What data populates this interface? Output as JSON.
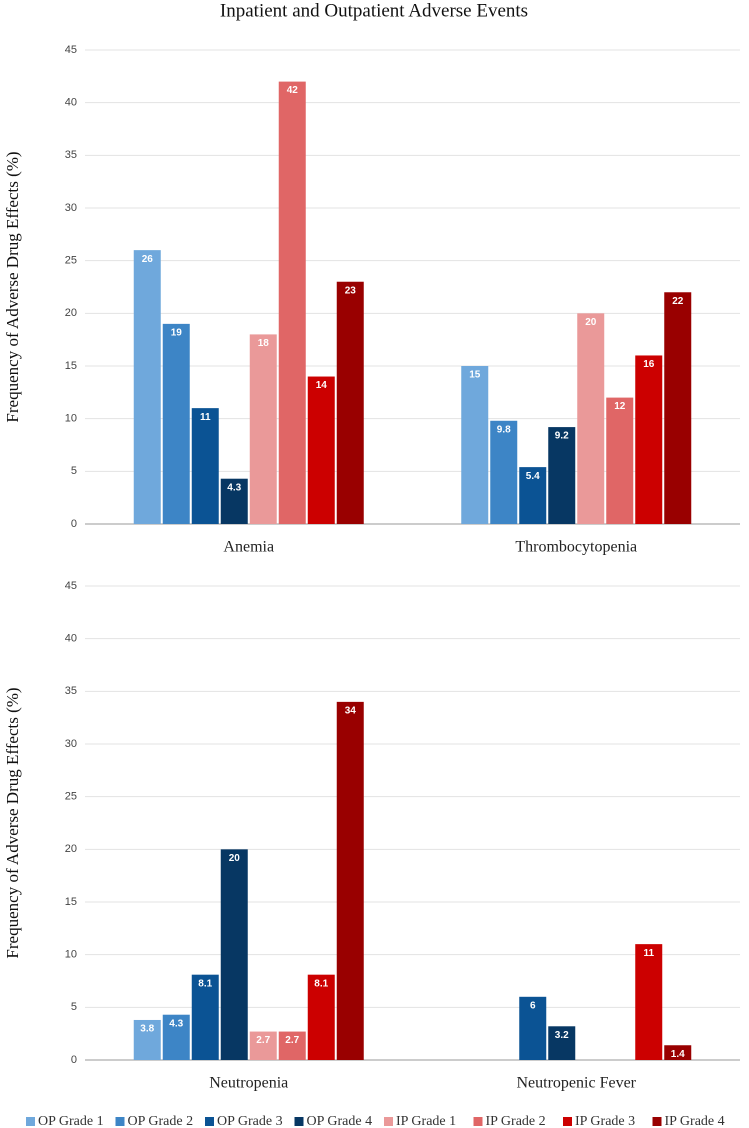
{
  "chart_data": [
    {
      "type": "bar",
      "title": "Inpatient and Outpatient Adverse Events",
      "ylabel": "Frequency of Adverse Drug Effects (%)",
      "categories": [
        "Anemia",
        "Thrombocytopenia"
      ],
      "ylim": [
        0,
        45
      ],
      "yticks": [
        0,
        5,
        10,
        15,
        20,
        25,
        30,
        35,
        40,
        45
      ],
      "grid": true,
      "series": [
        {
          "name": "OP Grade 1",
          "color": "#6fa8dc",
          "values": [
            26,
            15
          ]
        },
        {
          "name": "OP Grade 2",
          "color": "#3d85c6",
          "values": [
            19,
            9.8
          ]
        },
        {
          "name": "OP Grade 3",
          "color": "#0b5394",
          "values": [
            11,
            5.4
          ]
        },
        {
          "name": "OP Grade 4",
          "color": "#073763",
          "values": [
            4.3,
            9.2
          ]
        },
        {
          "name": "IP Grade 1",
          "color": "#ea9999",
          "values": [
            18,
            20
          ]
        },
        {
          "name": "IP Grade 2",
          "color": "#e06666",
          "values": [
            42,
            12
          ]
        },
        {
          "name": "IP Grade 3",
          "color": "#cc0000",
          "values": [
            14,
            16
          ]
        },
        {
          "name": "IP Grade 4",
          "color": "#990000",
          "values": [
            23,
            22
          ]
        }
      ]
    },
    {
      "type": "bar",
      "ylabel": "Frequency of Adverse Drug Effects (%)",
      "categories": [
        "Neutropenia",
        "Neutropenic Fever"
      ],
      "ylim": [
        0,
        45
      ],
      "yticks": [
        0,
        5,
        10,
        15,
        20,
        25,
        30,
        35,
        40,
        45
      ],
      "grid": true,
      "legend": "bottom",
      "series": [
        {
          "name": "OP Grade 1",
          "color": "#6fa8dc",
          "values": [
            3.8,
            null
          ]
        },
        {
          "name": "OP Grade 2",
          "color": "#3d85c6",
          "values": [
            4.3,
            null
          ]
        },
        {
          "name": "OP Grade 3",
          "color": "#0b5394",
          "values": [
            8.1,
            6
          ]
        },
        {
          "name": "OP Grade 4",
          "color": "#073763",
          "values": [
            20,
            3.2
          ]
        },
        {
          "name": "IP Grade 1",
          "color": "#ea9999",
          "values": [
            2.7,
            null
          ]
        },
        {
          "name": "IP Grade 2",
          "color": "#e06666",
          "values": [
            2.7,
            null
          ]
        },
        {
          "name": "IP Grade 3",
          "color": "#cc0000",
          "values": [
            8.1,
            11
          ]
        },
        {
          "name": "IP Grade 4",
          "color": "#990000",
          "values": [
            34,
            1.4
          ]
        }
      ]
    }
  ]
}
